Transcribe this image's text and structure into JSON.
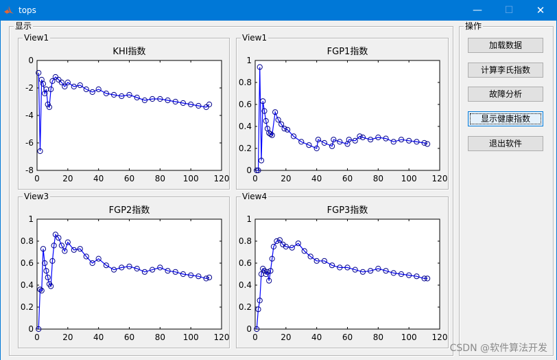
{
  "window": {
    "title": "tops"
  },
  "display_group": {
    "label": "显示"
  },
  "ops_group": {
    "label": "操作"
  },
  "buttons": {
    "load": "加载数据",
    "calc": "计算李氏指数",
    "fault": "故障分析",
    "show": "显示健康指数",
    "exit": "退出软件"
  },
  "watermark": "CSDN @软件算法开发",
  "colors": {
    "titlebar": "#0078d7",
    "series": "#0000ff",
    "marker": "#00008b"
  },
  "icons": {
    "app": "matlab-icon",
    "minimize": "minimize-icon",
    "maximize": "maximize-icon",
    "close": "close-icon"
  },
  "chart_data": [
    {
      "panel_label": "View1",
      "type": "line",
      "title": "KHI指数",
      "xlim": [
        0,
        120
      ],
      "ylim": [
        -8,
        0
      ],
      "xticks": [
        "0",
        "20",
        "40",
        "60",
        "80",
        "100",
        "120"
      ],
      "yticks": [
        "0",
        "-2",
        "-4",
        "-6",
        "-8"
      ],
      "series": [
        {
          "x": [
            1,
            2,
            3,
            4,
            5,
            6,
            7,
            8,
            9,
            10,
            12,
            14,
            16,
            18,
            20,
            24,
            28,
            32,
            36,
            40,
            45,
            50,
            55,
            60,
            65,
            70,
            75,
            80,
            85,
            90,
            95,
            100,
            105,
            110,
            112
          ],
          "y": [
            -0.9,
            -6.6,
            -1.4,
            -1.7,
            -2.4,
            -2.1,
            -3.2,
            -3.4,
            -2.1,
            -1.5,
            -1.2,
            -1.4,
            -1.6,
            -1.9,
            -1.6,
            -1.9,
            -1.8,
            -2.1,
            -2.3,
            -2.1,
            -2.4,
            -2.5,
            -2.6,
            -2.5,
            -2.7,
            -2.9,
            -2.8,
            -2.8,
            -2.9,
            -3.0,
            -3.1,
            -3.2,
            -3.3,
            -3.4,
            -3.2
          ]
        }
      ]
    },
    {
      "panel_label": "View1",
      "type": "line",
      "title": "FGP1指数",
      "xlim": [
        0,
        120
      ],
      "ylim": [
        0,
        1
      ],
      "xticks": [
        "0",
        "20",
        "40",
        "60",
        "80",
        "100",
        "120"
      ],
      "yticks": [
        "1",
        "0.8",
        "0.6",
        "0.4",
        "0.2",
        "0"
      ],
      "series": [
        {
          "x": [
            1,
            2,
            3,
            4,
            5,
            6,
            7,
            8,
            9,
            10,
            11,
            13,
            15,
            17,
            19,
            21,
            25,
            30,
            35,
            40,
            41,
            45,
            50,
            51,
            55,
            60,
            61,
            65,
            68,
            70,
            75,
            80,
            85,
            90,
            95,
            100,
            105,
            110,
            112
          ],
          "y": [
            0,
            0,
            0.94,
            0.09,
            0.63,
            0.54,
            0.45,
            0.38,
            0.34,
            0.33,
            0.32,
            0.53,
            0.46,
            0.42,
            0.38,
            0.37,
            0.31,
            0.26,
            0.23,
            0.2,
            0.28,
            0.25,
            0.22,
            0.28,
            0.26,
            0.24,
            0.28,
            0.27,
            0.31,
            0.3,
            0.28,
            0.3,
            0.29,
            0.26,
            0.28,
            0.27,
            0.26,
            0.25,
            0.24
          ]
        }
      ]
    },
    {
      "panel_label": "View3",
      "type": "line",
      "title": "FGP2指数",
      "xlim": [
        0,
        120
      ],
      "ylim": [
        0,
        1
      ],
      "xticks": [
        "0",
        "20",
        "40",
        "60",
        "80",
        "100",
        "120"
      ],
      "yticks": [
        "1",
        "0.8",
        "0.6",
        "0.4",
        "0.2",
        "0"
      ],
      "series": [
        {
          "x": [
            1,
            2,
            3,
            4,
            5,
            6,
            7,
            8,
            9,
            10,
            11,
            12,
            14,
            16,
            18,
            20,
            24,
            28,
            32,
            36,
            40,
            45,
            50,
            55,
            60,
            65,
            70,
            75,
            80,
            85,
            90,
            95,
            100,
            105,
            110,
            112
          ],
          "y": [
            0,
            0.36,
            0.35,
            0.73,
            0.6,
            0.53,
            0.47,
            0.41,
            0.39,
            0.62,
            0.76,
            0.86,
            0.83,
            0.76,
            0.71,
            0.79,
            0.72,
            0.73,
            0.66,
            0.6,
            0.64,
            0.58,
            0.54,
            0.56,
            0.57,
            0.55,
            0.52,
            0.54,
            0.56,
            0.53,
            0.52,
            0.5,
            0.49,
            0.48,
            0.46,
            0.47
          ]
        }
      ]
    },
    {
      "panel_label": "View4",
      "type": "line",
      "title": "FGP3指数",
      "xlim": [
        0,
        120
      ],
      "ylim": [
        0,
        1
      ],
      "xticks": [
        "0",
        "20",
        "40",
        "60",
        "80",
        "100",
        "120"
      ],
      "yticks": [
        "1",
        "0.8",
        "0.6",
        "0.4",
        "0.2",
        "0"
      ],
      "series": [
        {
          "x": [
            1,
            2,
            3,
            4,
            5,
            6,
            7,
            8,
            9,
            10,
            11,
            12,
            14,
            16,
            18,
            20,
            24,
            28,
            32,
            36,
            40,
            45,
            50,
            55,
            60,
            65,
            70,
            75,
            80,
            85,
            90,
            95,
            100,
            105,
            110,
            112
          ],
          "y": [
            0,
            0.18,
            0.26,
            0.5,
            0.55,
            0.53,
            0.5,
            0.52,
            0.44,
            0.53,
            0.64,
            0.75,
            0.8,
            0.81,
            0.77,
            0.75,
            0.74,
            0.78,
            0.71,
            0.66,
            0.62,
            0.62,
            0.58,
            0.56,
            0.56,
            0.54,
            0.52,
            0.53,
            0.55,
            0.53,
            0.51,
            0.5,
            0.49,
            0.48,
            0.46,
            0.46
          ]
        }
      ]
    }
  ]
}
